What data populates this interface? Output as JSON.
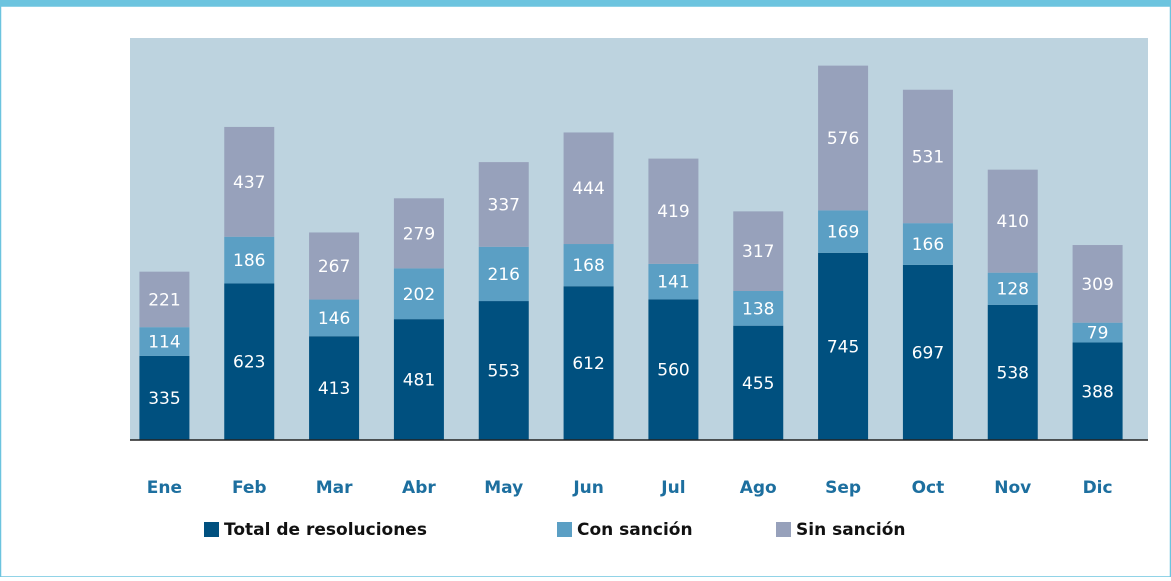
{
  "chart_data": {
    "type": "stacked_bar",
    "categories": [
      "Ene",
      "Feb",
      "Mar",
      "Abr",
      "May",
      "Jun",
      "Jul",
      "Ago",
      "Sep",
      "Oct",
      "Nov",
      "Dic"
    ],
    "series": [
      {
        "name": "Total de resoluciones",
        "color": "#00507f",
        "values": [
          335,
          623,
          413,
          481,
          553,
          612,
          560,
          455,
          745,
          697,
          538,
          388
        ]
      },
      {
        "name": "Con sanción",
        "color": "#5b9fc4",
        "values": [
          114,
          186,
          146,
          202,
          216,
          168,
          141,
          138,
          169,
          166,
          128,
          79
        ]
      },
      {
        "name": "Sin sanción",
        "color": "#97a1bb",
        "values": [
          221,
          437,
          267,
          279,
          337,
          444,
          419,
          317,
          576,
          531,
          410,
          309
        ]
      }
    ],
    "ylim": [
      0,
      1600
    ]
  }
}
